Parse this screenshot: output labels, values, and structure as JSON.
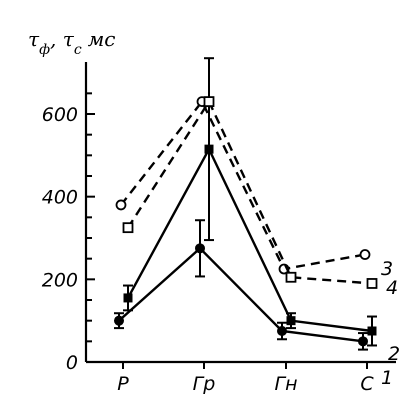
{
  "chart_data": {
    "type": "line",
    "ylabel": "τф, τс мс",
    "categories": [
      "Р",
      "Гр",
      "Гн",
      "С"
    ],
    "ylim": [
      0,
      700
    ],
    "yticks": [
      0,
      200,
      400,
      600
    ],
    "series": [
      {
        "name": "1",
        "values": [
          100,
          275,
          75,
          50
        ],
        "errors": [
          18,
          68,
          20,
          20
        ],
        "marker": "filled-circle",
        "line": "solid"
      },
      {
        "name": "2",
        "values": [
          155,
          515,
          100,
          75
        ],
        "errors": [
          30,
          220,
          18,
          35
        ],
        "marker": "filled-square",
        "line": "solid"
      },
      {
        "name": "3",
        "values": [
          380,
          630,
          225,
          260
        ],
        "errors": [
          0,
          0,
          0,
          0
        ],
        "marker": "open-circle",
        "line": "dashed"
      },
      {
        "name": "4",
        "values": [
          325,
          630,
          205,
          190
        ],
        "errors": [
          0,
          0,
          0,
          0
        ],
        "marker": "open-square",
        "line": "dashed"
      }
    ]
  },
  "colors": {
    "ink": "#000000",
    "background": "#ffffff"
  }
}
